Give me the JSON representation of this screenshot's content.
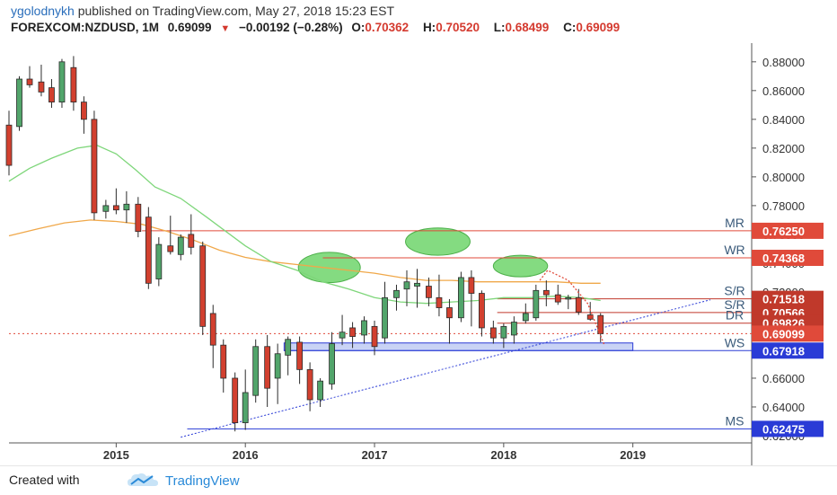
{
  "header": {
    "author": "ygolodnykh",
    "published": " published on TradingView.com, May 27, 2018 15:23 EST",
    "symbol": "FOREXCOM:NZDUSD, 1M",
    "last": "0.69099",
    "change_arrow": "▼",
    "change": "−0.00192 (−0.28%)",
    "o_label": "O:",
    "o_val": "0.70362",
    "h_label": "H:",
    "h_val": "0.70520",
    "l_label": "L:",
    "l_val": "0.68499",
    "c_label": "C:",
    "c_val": "0.69099"
  },
  "footer": {
    "created": "Created with",
    "brand": "TradingView",
    "logo_icon": "tradingview-logo-icon"
  },
  "colors": {
    "up": "#52a56b",
    "down": "#d2402f",
    "ma_fast": "#7ed67a",
    "ma_slow": "#f0a84a",
    "red_line": "#e04a3a",
    "blue_line": "#2a3bd6",
    "zone": "#c9d3f5",
    "ellipse": "#6fd56b"
  },
  "chart_data": {
    "type": "candlestick",
    "ylim": [
      0.615,
      0.893
    ],
    "y_ticks": [
      "0.62000",
      "0.64000",
      "0.66000",
      "0.68000",
      "0.70000",
      "0.72000",
      "0.74000",
      "0.76000",
      "0.78000",
      "0.80000",
      "0.82000",
      "0.84000",
      "0.86000",
      "0.88000"
    ],
    "x_ticks": [
      {
        "label": "2015",
        "t": 2015
      },
      {
        "label": "2016",
        "t": 2016
      },
      {
        "label": "2017",
        "t": 2017
      },
      {
        "label": "2018",
        "t": 2018
      },
      {
        "label": "2019",
        "t": 2019
      }
    ],
    "xlim": [
      2014.17,
      2019.92
    ],
    "candles": [
      {
        "t": 2014.17,
        "o": 0.836,
        "h": 0.846,
        "l": 0.801,
        "c": 0.808
      },
      {
        "t": 2014.25,
        "o": 0.835,
        "h": 0.87,
        "l": 0.832,
        "c": 0.868
      },
      {
        "t": 2014.33,
        "o": 0.868,
        "h": 0.877,
        "l": 0.862,
        "c": 0.864
      },
      {
        "t": 2014.42,
        "o": 0.866,
        "h": 0.878,
        "l": 0.856,
        "c": 0.859
      },
      {
        "t": 2014.5,
        "o": 0.862,
        "h": 0.868,
        "l": 0.848,
        "c": 0.852
      },
      {
        "t": 2014.58,
        "o": 0.852,
        "h": 0.882,
        "l": 0.848,
        "c": 0.88
      },
      {
        "t": 2014.67,
        "o": 0.876,
        "h": 0.884,
        "l": 0.846,
        "c": 0.852
      },
      {
        "t": 2014.75,
        "o": 0.852,
        "h": 0.856,
        "l": 0.83,
        "c": 0.84
      },
      {
        "t": 2014.83,
        "o": 0.84,
        "h": 0.846,
        "l": 0.77,
        "c": 0.775
      },
      {
        "t": 2014.92,
        "o": 0.776,
        "h": 0.784,
        "l": 0.771,
        "c": 0.78
      },
      {
        "t": 2015.0,
        "o": 0.78,
        "h": 0.792,
        "l": 0.774,
        "c": 0.777
      },
      {
        "t": 2015.08,
        "o": 0.777,
        "h": 0.79,
        "l": 0.768,
        "c": 0.781
      },
      {
        "t": 2015.17,
        "o": 0.781,
        "h": 0.786,
        "l": 0.758,
        "c": 0.762
      },
      {
        "t": 2015.25,
        "o": 0.772,
        "h": 0.779,
        "l": 0.722,
        "c": 0.726
      },
      {
        "t": 2015.33,
        "o": 0.729,
        "h": 0.758,
        "l": 0.724,
        "c": 0.753
      },
      {
        "t": 2015.42,
        "o": 0.752,
        "h": 0.773,
        "l": 0.746,
        "c": 0.748
      },
      {
        "t": 2015.5,
        "o": 0.746,
        "h": 0.76,
        "l": 0.742,
        "c": 0.758
      },
      {
        "t": 2015.58,
        "o": 0.76,
        "h": 0.774,
        "l": 0.746,
        "c": 0.751
      },
      {
        "t": 2015.67,
        "o": 0.752,
        "h": 0.755,
        "l": 0.69,
        "c": 0.696
      },
      {
        "t": 2015.75,
        "o": 0.705,
        "h": 0.711,
        "l": 0.667,
        "c": 0.683
      },
      {
        "t": 2015.83,
        "o": 0.683,
        "h": 0.687,
        "l": 0.65,
        "c": 0.66
      },
      {
        "t": 2015.92,
        "o": 0.66,
        "h": 0.664,
        "l": 0.623,
        "c": 0.629
      },
      {
        "t": 2016.0,
        "o": 0.629,
        "h": 0.666,
        "l": 0.624,
        "c": 0.65
      },
      {
        "t": 2016.08,
        "o": 0.648,
        "h": 0.687,
        "l": 0.643,
        "c": 0.682
      },
      {
        "t": 2016.17,
        "o": 0.682,
        "h": 0.69,
        "l": 0.64,
        "c": 0.653
      },
      {
        "t": 2016.25,
        "o": 0.66,
        "h": 0.684,
        "l": 0.642,
        "c": 0.677
      },
      {
        "t": 2016.33,
        "o": 0.676,
        "h": 0.689,
        "l": 0.662,
        "c": 0.687
      },
      {
        "t": 2016.42,
        "o": 0.685,
        "h": 0.689,
        "l": 0.656,
        "c": 0.666
      },
      {
        "t": 2016.5,
        "o": 0.666,
        "h": 0.671,
        "l": 0.637,
        "c": 0.645
      },
      {
        "t": 2016.58,
        "o": 0.645,
        "h": 0.66,
        "l": 0.64,
        "c": 0.658
      },
      {
        "t": 2016.67,
        "o": 0.656,
        "h": 0.692,
        "l": 0.652,
        "c": 0.684
      },
      {
        "t": 2016.75,
        "o": 0.688,
        "h": 0.704,
        "l": 0.683,
        "c": 0.692
      },
      {
        "t": 2016.83,
        "o": 0.695,
        "h": 0.699,
        "l": 0.681,
        "c": 0.689
      },
      {
        "t": 2016.92,
        "o": 0.69,
        "h": 0.703,
        "l": 0.684,
        "c": 0.7
      },
      {
        "t": 2017.0,
        "o": 0.696,
        "h": 0.7,
        "l": 0.676,
        "c": 0.682
      },
      {
        "t": 2017.08,
        "o": 0.688,
        "h": 0.727,
        "l": 0.684,
        "c": 0.716
      },
      {
        "t": 2017.17,
        "o": 0.716,
        "h": 0.725,
        "l": 0.707,
        "c": 0.721
      },
      {
        "t": 2017.25,
        "o": 0.722,
        "h": 0.735,
        "l": 0.71,
        "c": 0.727
      },
      {
        "t": 2017.33,
        "o": 0.724,
        "h": 0.736,
        "l": 0.709,
        "c": 0.726
      },
      {
        "t": 2017.42,
        "o": 0.724,
        "h": 0.73,
        "l": 0.71,
        "c": 0.716
      },
      {
        "t": 2017.5,
        "o": 0.716,
        "h": 0.732,
        "l": 0.703,
        "c": 0.709
      },
      {
        "t": 2017.58,
        "o": 0.709,
        "h": 0.715,
        "l": 0.684,
        "c": 0.702
      },
      {
        "t": 2017.67,
        "o": 0.702,
        "h": 0.734,
        "l": 0.699,
        "c": 0.73
      },
      {
        "t": 2017.75,
        "o": 0.73,
        "h": 0.735,
        "l": 0.696,
        "c": 0.719
      },
      {
        "t": 2017.83,
        "o": 0.719,
        "h": 0.721,
        "l": 0.689,
        "c": 0.695
      },
      {
        "t": 2017.92,
        "o": 0.695,
        "h": 0.7,
        "l": 0.684,
        "c": 0.688
      },
      {
        "t": 2018.0,
        "o": 0.688,
        "h": 0.698,
        "l": 0.681,
        "c": 0.696
      },
      {
        "t": 2018.08,
        "o": 0.69,
        "h": 0.703,
        "l": 0.684,
        "c": 0.699
      },
      {
        "t": 2018.17,
        "o": 0.7,
        "h": 0.712,
        "l": 0.698,
        "c": 0.705
      },
      {
        "t": 2018.25,
        "o": 0.702,
        "h": 0.725,
        "l": 0.7,
        "c": 0.721
      },
      {
        "t": 2018.33,
        "o": 0.721,
        "h": 0.728,
        "l": 0.71,
        "c": 0.718
      },
      {
        "t": 2018.42,
        "o": 0.718,
        "h": 0.725,
        "l": 0.711,
        "c": 0.713
      },
      {
        "t": 2018.5,
        "o": 0.715,
        "h": 0.718,
        "l": 0.708,
        "c": 0.716
      },
      {
        "t": 2018.58,
        "o": 0.716,
        "h": 0.722,
        "l": 0.704,
        "c": 0.706
      },
      {
        "t": 2018.67,
        "o": 0.704,
        "h": 0.713,
        "l": 0.7,
        "c": 0.701
      },
      {
        "t": 2018.75,
        "o": 0.7036,
        "h": 0.7052,
        "l": 0.685,
        "c": 0.691
      }
    ],
    "levels": [
      {
        "label": "MR",
        "value": 0.7625,
        "value_text": "0.76250",
        "color": "#e04a3a",
        "start": 2015.2
      },
      {
        "label": "WR",
        "value": 0.74368,
        "value_text": "0.74368",
        "color": "#e04a3a",
        "start": 2016.6
      },
      {
        "label": "S/R",
        "value": 0.71518,
        "value_text": "0.71518",
        "color": "#c0392b",
        "start": 2017.95
      },
      {
        "label": "S/R",
        "value": 0.70566,
        "value_text": "0.70566",
        "color": "#c0392b",
        "start": 2017.95
      },
      {
        "label": "DR",
        "value": 0.69826,
        "value_text": "0.69826",
        "color": "#c0392b",
        "start": 2017.95
      },
      {
        "label": "",
        "value": 0.69099,
        "value_text": "0.69099",
        "color": "#e04a3a",
        "start": 2014.17
      },
      {
        "label": "WS",
        "value": 0.67918,
        "value_text": "0.67918",
        "color": "#2a3bd6",
        "start": 2016.3
      },
      {
        "label": "MS",
        "value": 0.62475,
        "value_text": "0.62475",
        "color": "#2a3bd6",
        "start": 2015.55
      }
    ],
    "ma_fast": [
      [
        2014.17,
        0.797
      ],
      [
        2014.33,
        0.806
      ],
      [
        2014.5,
        0.813
      ],
      [
        2014.7,
        0.82
      ],
      [
        2014.85,
        0.822
      ],
      [
        2015.0,
        0.816
      ],
      [
        2015.15,
        0.805
      ],
      [
        2015.3,
        0.793
      ],
      [
        2015.5,
        0.785
      ],
      [
        2015.7,
        0.772
      ],
      [
        2015.85,
        0.762
      ],
      [
        2016.0,
        0.752
      ],
      [
        2016.2,
        0.741
      ],
      [
        2016.4,
        0.735
      ],
      [
        2016.6,
        0.727
      ],
      [
        2016.8,
        0.722
      ],
      [
        2017.0,
        0.716
      ],
      [
        2017.2,
        0.713
      ],
      [
        2017.4,
        0.712
      ],
      [
        2017.6,
        0.713
      ],
      [
        2017.8,
        0.714
      ],
      [
        2018.0,
        0.716
      ],
      [
        2018.2,
        0.716
      ],
      [
        2018.4,
        0.717
      ],
      [
        2018.6,
        0.716
      ],
      [
        2018.75,
        0.714
      ]
    ],
    "ma_slow": [
      [
        2014.17,
        0.759
      ],
      [
        2014.4,
        0.764
      ],
      [
        2014.6,
        0.768
      ],
      [
        2014.8,
        0.77
      ],
      [
        2015.0,
        0.769
      ],
      [
        2015.2,
        0.767
      ],
      [
        2015.4,
        0.762
      ],
      [
        2015.6,
        0.756
      ],
      [
        2015.8,
        0.749
      ],
      [
        2016.0,
        0.744
      ],
      [
        2016.2,
        0.741
      ],
      [
        2016.4,
        0.739
      ],
      [
        2016.6,
        0.737
      ],
      [
        2016.8,
        0.735
      ],
      [
        2017.0,
        0.733
      ],
      [
        2017.2,
        0.73
      ],
      [
        2017.4,
        0.728
      ],
      [
        2017.6,
        0.728
      ],
      [
        2017.8,
        0.727
      ],
      [
        2018.0,
        0.727
      ],
      [
        2018.2,
        0.727
      ],
      [
        2018.4,
        0.727
      ],
      [
        2018.6,
        0.726
      ],
      [
        2018.75,
        0.726
      ]
    ],
    "trendline": {
      "t1": 2015.5,
      "v1": 0.619,
      "t2": 2019.6,
      "v2": 0.7145
    },
    "support_zone": {
      "t1": 2016.3,
      "t2": 2019.0,
      "v_low": 0.67918,
      "v_high": 0.6845
    },
    "ellipses": [
      {
        "t": 2016.65,
        "v": 0.737,
        "rt": 0.24,
        "rv": 0.0105
      },
      {
        "t": 2017.49,
        "v": 0.755,
        "rt": 0.25,
        "rv": 0.0095
      },
      {
        "t": 2018.13,
        "v": 0.738,
        "rt": 0.21,
        "rv": 0.0075
      }
    ],
    "projection": [
      [
        2018.28,
        0.728
      ],
      [
        2018.34,
        0.735
      ],
      [
        2018.5,
        0.728
      ],
      [
        2018.65,
        0.712
      ],
      [
        2018.78,
        0.683
      ]
    ]
  }
}
